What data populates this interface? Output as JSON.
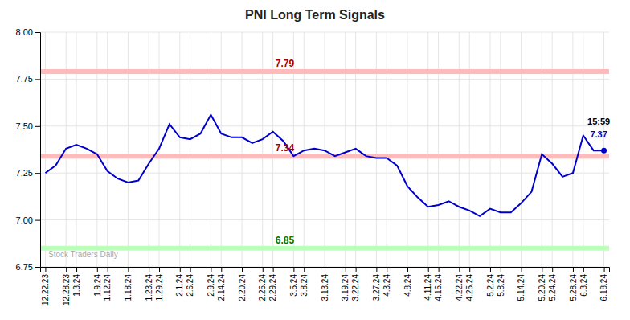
{
  "chart_data": {
    "type": "line",
    "title": "PNI Long Term Signals",
    "categories": [
      "12.22.23",
      null,
      "12.28.23",
      "1.3.24",
      null,
      "1.9.24",
      "1.12.24",
      null,
      "1.18.24",
      null,
      "1.23.24",
      "1.29.24",
      null,
      "2.1.24",
      "2.6.24",
      null,
      "2.9.24",
      "2.14.24",
      null,
      "2.20.24",
      null,
      "2.26.24",
      "2.29.24",
      null,
      "3.5.24",
      "3.8.24",
      null,
      "3.13.24",
      null,
      "3.19.24",
      "3.22.24",
      null,
      "3.27.24",
      "4.3.24",
      null,
      "4.8.24",
      null,
      "4.11.24",
      "4.16.24",
      null,
      "4.22.24",
      "4.25.24",
      null,
      "5.2.24",
      "5.8.24",
      null,
      "5.14.24",
      null,
      "5.20.24",
      "5.24.24",
      null,
      "5.28.24",
      "6.3.24",
      null,
      "6.18.24"
    ],
    "values": [
      7.25,
      7.29,
      7.38,
      7.4,
      7.38,
      7.35,
      7.26,
      7.22,
      7.2,
      7.21,
      7.3,
      7.38,
      7.51,
      7.44,
      7.43,
      7.46,
      7.56,
      7.46,
      7.44,
      7.44,
      7.41,
      7.43,
      7.47,
      7.42,
      7.34,
      7.37,
      7.38,
      7.37,
      7.34,
      7.36,
      7.38,
      7.34,
      7.33,
      7.33,
      7.29,
      7.18,
      7.12,
      7.07,
      7.08,
      7.1,
      7.07,
      7.05,
      7.02,
      7.06,
      7.04,
      7.04,
      7.09,
      7.15,
      7.35,
      7.3,
      7.23,
      7.25,
      7.45,
      7.37,
      7.37
    ],
    "color": "#0000cc",
    "ylim": [
      6.75,
      8.0
    ],
    "yticks": [
      6.75,
      {
        "value": 7.0,
        "label": "7.00"
      },
      7.25,
      {
        "value": 7.5,
        "label": "7.50"
      },
      7.75,
      {
        "value": 8.0,
        "label": "8.00"
      }
    ],
    "grid": true,
    "hlines": [
      {
        "value": 7.79,
        "label": "7.79",
        "color": "#ffbbbb",
        "label_color": "#aa0000"
      },
      {
        "value": 7.34,
        "label": "7.34",
        "color": "#ffbbbb",
        "label_color": "#aa0000"
      },
      {
        "value": 6.85,
        "label": "6.85",
        "color": "#bbffbb",
        "label_color": "#007700"
      }
    ],
    "annotations": [
      {
        "text": "15:59",
        "color": "#000000"
      },
      {
        "text": "7.37",
        "color": "#0000cc"
      }
    ],
    "watermark": {
      "text": "Stock Traders Daily",
      "color": "#aaaaaa"
    }
  }
}
